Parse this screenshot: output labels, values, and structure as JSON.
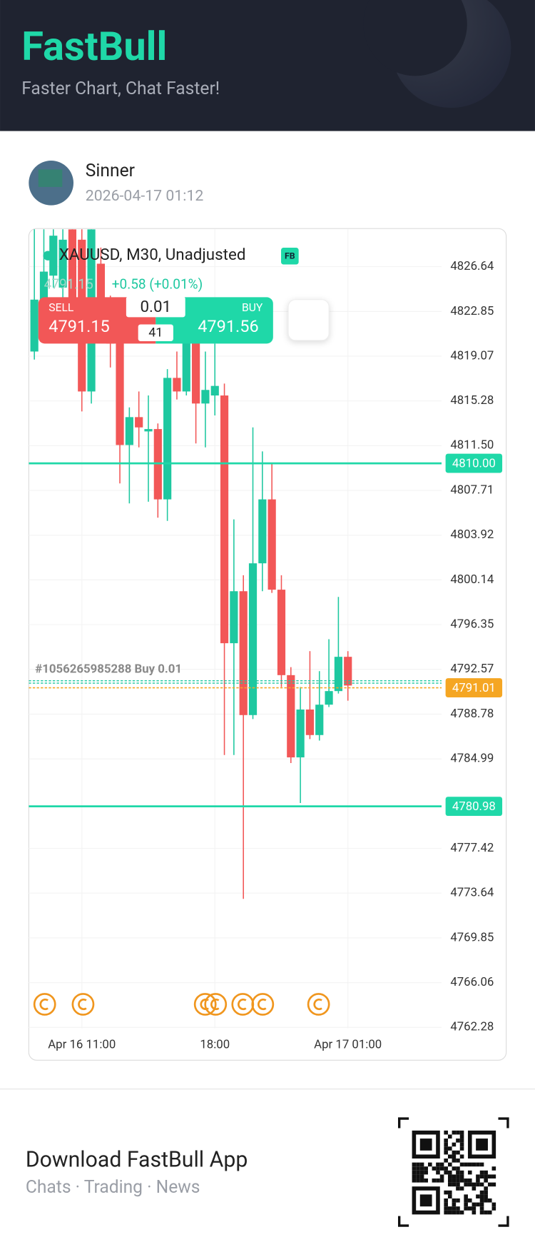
{
  "header": {
    "logo": "FastBull",
    "tagline": "Faster Chart, Chat Faster!"
  },
  "post": {
    "user": "Sinner",
    "date": "2026-04-17 01:12"
  },
  "chart_data": {
    "type": "candlestick",
    "title": "XAUUSD, M30, Unadjusted",
    "badge": "FB",
    "last_price": "4791.15",
    "change": "+0.58 (+0.01%)",
    "trade_panel": {
      "sell_label": "SELL",
      "sell_price": "4791.15",
      "buy_label": "BUY",
      "buy_price": "4791.56",
      "lot": "0.01",
      "spread": "41"
    },
    "order_annotation": "#1056265985288 Buy 0.01",
    "up_color": "#1ec8a0",
    "down_color": "#f25757",
    "categories": [
      null,
      null,
      null,
      null,
      null,
      "Apr 16 11:00",
      null,
      null,
      null,
      null,
      null,
      null,
      null,
      null,
      null,
      null,
      null,
      null,
      null,
      "18:00",
      null,
      null,
      null,
      null,
      null,
      null,
      null,
      null,
      null,
      null,
      null,
      null,
      null,
      "Apr 17 01:00"
    ],
    "open": [
      4819.46,
      4823.85,
      4825.88,
      4824.87,
      4829.8,
      4828.92,
      4816.08,
      4826.89,
      4822.16,
      4820.81,
      4811.55,
      4813.91,
      4812.7,
      4812.9,
      4806.95,
      4817.23,
      4816.08,
      4820.81,
      4815.06,
      4815.74,
      4815.74,
      4794.78,
      4799.18,
      4788.7,
      4801.54,
      4806.95,
      4799.31,
      4792.08,
      4785.12,
      4789.17,
      4787.01,
      4789.58,
      4790.73,
      4793.63
    ],
    "high": [
      4830.5,
      4830.5,
      4830.5,
      4830.5,
      4830.5,
      4830.5,
      4830.5,
      4828.25,
      4824.19,
      4822.16,
      4814.73,
      4816.08,
      4815.74,
      4813.37,
      4817.97,
      4819.46,
      4822.16,
      4822.16,
      4819.46,
      4820.13,
      4816.75,
      4805.26,
      4800.53,
      4813.04,
      4811.01,
      4809.99,
      4800.53,
      4792.76,
      4791.07,
      4794.11,
      4792.42,
      4795.12,
      4798.7,
      4794.11
    ],
    "low": [
      4818.78,
      4822.16,
      4824.87,
      4823.51,
      4822.16,
      4814.39,
      4815.06,
      4820.81,
      4818.11,
      4808.3,
      4806.61,
      4811.35,
      4806.75,
      4805.4,
      4805.13,
      4815.4,
      4815.74,
      4811.68,
      4811.35,
      4814.05,
      4785.32,
      4785.32,
      4773.15,
      4788.36,
      4799.18,
      4799.04,
      4791.07,
      4784.64,
      4781.26,
      4786.67,
      4786.54,
      4789.38,
      4790.52,
      4789.92
    ],
    "close": [
      4823.85,
      4826.22,
      4829.26,
      4828.92,
      4823.51,
      4816.08,
      4829.8,
      4822.16,
      4820.13,
      4811.55,
      4813.91,
      4813.04,
      4812.9,
      4806.95,
      4817.23,
      4816.08,
      4820.81,
      4815.06,
      4816.21,
      4816.55,
      4794.78,
      4799.18,
      4788.7,
      4801.54,
      4806.95,
      4799.31,
      4792.08,
      4785.12,
      4789.17,
      4787.01,
      4789.58,
      4790.73,
      4793.63,
      4791.2
    ],
    "ylim": [
      4762.2,
      4829.8
    ],
    "yticks": [
      4826.64,
      4822.85,
      4819.07,
      4815.28,
      {
        "value": 4811.5,
        "label": "4811.50"
      },
      4807.71,
      4803.92,
      4800.14,
      4796.35,
      4792.57,
      4788.78,
      4784.99,
      4777.42,
      4773.64,
      4769.85,
      4766.06,
      4762.28
    ],
    "price_lines": [
      {
        "value": 4810,
        "label": "4810.00",
        "color": "#1fd8a8",
        "dashed": false
      },
      {
        "value": 4791.01,
        "label": "4791.01",
        "color": "#f5a623",
        "dashed": true
      },
      {
        "value": 4780.98,
        "label": "4780.98",
        "color": "#1fd8a8",
        "dashed": false
      }
    ],
    "grid": true
  },
  "footer": {
    "title": "Download FastBull App",
    "subtitle": "Chats · Trading · News"
  }
}
